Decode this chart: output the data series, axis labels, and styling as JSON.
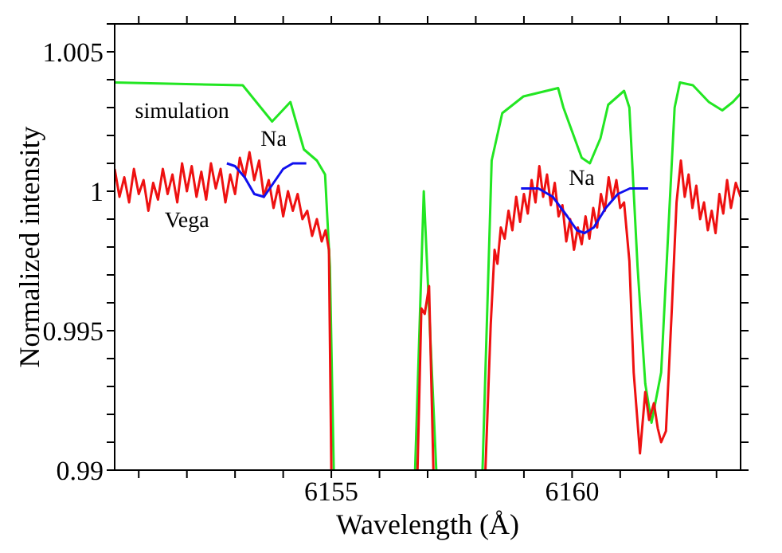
{
  "chart_data": {
    "type": "line",
    "xlabel": "Wavelength (Å)",
    "ylabel": "Normalized intensity",
    "xlim": [
      6150.5,
      6163.5
    ],
    "ylim": [
      0.99,
      1.006
    ],
    "xticks": [
      {
        "value": 6151,
        "label": null
      },
      {
        "value": 6152,
        "label": null
      },
      {
        "value": 6153,
        "label": null
      },
      {
        "value": 6154,
        "label": null
      },
      6155,
      {
        "value": 6156,
        "label": null
      },
      {
        "value": 6157,
        "label": null
      },
      {
        "value": 6158,
        "label": null
      },
      {
        "value": 6159,
        "label": null
      },
      6160,
      {
        "value": 6161,
        "label": null
      },
      {
        "value": 6162,
        "label": null
      },
      {
        "value": 6163,
        "label": null
      }
    ],
    "yticks": [
      0.99,
      {
        "value": 0.991,
        "label": null
      },
      {
        "value": 0.992,
        "label": null
      },
      {
        "value": 0.993,
        "label": null
      },
      {
        "value": 0.994,
        "label": null
      },
      0.995,
      {
        "value": 0.996,
        "label": null
      },
      {
        "value": 0.997,
        "label": null
      },
      {
        "value": 0.998,
        "label": null
      },
      {
        "value": 0.999,
        "label": null
      },
      1,
      {
        "value": 1.001,
        "label": null
      },
      {
        "value": 1.002,
        "label": null
      },
      {
        "value": 1.003,
        "label": null
      },
      {
        "value": 1.004,
        "label": null
      },
      1.005,
      {
        "value": 1.006,
        "label": null
      }
    ],
    "grid": false,
    "legend": false,
    "marker": "none",
    "line_style": "solid",
    "annotations": [
      "Na",
      "Na"
    ],
    "series": [
      {
        "name": "simulation",
        "color": "#22e622",
        "x": [
          6150.5,
          6153.16,
          6153.77,
          6154.15,
          6154.43,
          6154.7,
          6154.87,
          6154.97,
          6155.05,
          6156,
          6156.74,
          6156.92,
          6157.18,
          6157.7,
          6158.14,
          6158.33,
          6158.55,
          6158.99,
          6159.71,
          6159.82,
          6160.2,
          6160.37,
          6160.59,
          6160.75,
          6161.08,
          6161.19,
          6161.36,
          6161.52,
          6161.65,
          6161.85,
          6162.02,
          6162.13,
          6162.24,
          6162.51,
          6162.84,
          6163.12,
          6163.34,
          6163.5
        ],
        "values": [
          1.0039,
          1.0038,
          1.0025,
          1.0032,
          1.0015,
          1.0011,
          1.0006,
          0.9973,
          0.99,
          null,
          0.99,
          1.0,
          0.99,
          null,
          0.99,
          1.0011,
          1.0028,
          1.0034,
          1.0037,
          1.003,
          1.0012,
          1.001,
          1.0019,
          1.0031,
          1.0036,
          1.003,
          0.9973,
          0.9931,
          0.9917,
          0.9935,
          0.9993,
          1.003,
          1.0039,
          1.0038,
          1.0032,
          1.0029,
          1.0032,
          1.0035
        ]
      },
      {
        "name": "Vega",
        "color": "#ee1111",
        "x": [
          6150.5,
          6150.6,
          6150.7,
          6150.8,
          6150.9,
          6151.0,
          6151.1,
          6151.2,
          6151.3,
          6151.4,
          6151.5,
          6151.6,
          6151.7,
          6151.8,
          6151.9,
          6152.0,
          6152.1,
          6152.2,
          6152.3,
          6152.4,
          6152.5,
          6152.6,
          6152.7,
          6152.8,
          6152.9,
          6153.0,
          6153.1,
          6153.2,
          6153.3,
          6153.4,
          6153.5,
          6153.6,
          6153.7,
          6153.8,
          6153.9,
          6154.0,
          6154.1,
          6154.2,
          6154.3,
          6154.4,
          6154.5,
          6154.6,
          6154.7,
          6154.8,
          6154.88,
          6154.95,
          6155.0,
          6156,
          6156.79,
          6156.87,
          6156.94,
          6157.03,
          6157.12,
          6157.6,
          6158.2,
          6158.31,
          6158.39,
          6158.45,
          6158.52,
          6158.6,
          6158.68,
          6158.76,
          6158.84,
          6158.92,
          6159.0,
          6159.08,
          6159.16,
          6159.24,
          6159.32,
          6159.4,
          6159.48,
          6159.56,
          6159.64,
          6159.72,
          6159.8,
          6159.88,
          6159.96,
          6160.04,
          6160.12,
          6160.2,
          6160.28,
          6160.36,
          6160.44,
          6160.52,
          6160.6,
          6160.68,
          6160.76,
          6160.84,
          6160.92,
          6161.0,
          6161.08,
          6161.19,
          6161.28,
          6161.41,
          6161.52,
          6161.6,
          6161.7,
          6161.78,
          6161.85,
          6161.95,
          6162.07,
          6162.17,
          6162.26,
          6162.34,
          6162.42,
          6162.5,
          6162.58,
          6162.66,
          6162.74,
          6162.82,
          6162.9,
          6162.98,
          6163.06,
          6163.14,
          6163.22,
          6163.3,
          6163.4,
          6163.5
        ],
        "values": [
          1.0008,
          0.9998,
          1.0005,
          0.9996,
          1.0008,
          0.9999,
          1.0004,
          0.9993,
          1.0003,
          0.9997,
          1.0008,
          0.9999,
          1.0006,
          0.9996,
          1.001,
          1.0,
          1.0009,
          0.9998,
          1.0007,
          0.9997,
          1.001,
          1.0001,
          1.0008,
          0.9996,
          1.0006,
          0.9999,
          1.0012,
          1.0005,
          1.0014,
          1.0004,
          1.0011,
          0.9998,
          1.0004,
          0.9994,
          1.0002,
          0.9991,
          1.0,
          0.9993,
          0.9999,
          0.999,
          0.9993,
          0.9984,
          0.999,
          0.9982,
          0.9986,
          0.9979,
          0.99,
          null,
          0.99,
          0.9958,
          0.9956,
          0.9966,
          0.99,
          null,
          0.99,
          0.9952,
          0.9979,
          0.9974,
          0.9987,
          0.9983,
          0.9993,
          0.9986,
          0.9998,
          0.9989,
          0.9999,
          0.9992,
          1.0004,
          0.9996,
          1.0009,
          0.9998,
          1.0006,
          0.9995,
          1.0003,
          0.9991,
          0.9995,
          0.9982,
          0.999,
          0.9979,
          0.9987,
          0.9981,
          0.9991,
          0.9983,
          0.9994,
          0.9987,
          0.9999,
          0.9993,
          1.0005,
          0.9997,
          1.0004,
          0.9994,
          0.9996,
          0.9975,
          0.9935,
          0.9906,
          0.9928,
          0.9918,
          0.9924,
          0.9915,
          0.991,
          0.9914,
          0.9957,
          0.9996,
          1.0011,
          0.9998,
          1.0006,
          0.9994,
          1.0002,
          0.999,
          0.9996,
          0.9986,
          0.9993,
          0.9985,
          0.9999,
          0.9992,
          1.0004,
          0.9994,
          1.0003,
          0.9998
        ]
      },
      {
        "color": "#1010ee",
        "x": [
          6152.83,
          6153.0,
          6153.2,
          6153.4,
          6153.6,
          6153.8,
          6154.0,
          6154.2,
          6154.48
        ],
        "values": [
          1.001,
          1.0009,
          1.0005,
          0.9999,
          0.9998,
          1.0003,
          1.0008,
          1.001,
          1.001
        ]
      },
      {
        "color": "#1010ee",
        "x": [
          6158.94,
          6159.3,
          6159.6,
          6159.9,
          6160.1,
          6160.26,
          6160.45,
          6160.7,
          6160.95,
          6161.2,
          6161.58
        ],
        "values": [
          1.0001,
          1.0001,
          0.9998,
          0.9991,
          0.9986,
          0.9985,
          0.9987,
          0.9994,
          0.9999,
          1.0001,
          1.0001
        ]
      }
    ]
  }
}
